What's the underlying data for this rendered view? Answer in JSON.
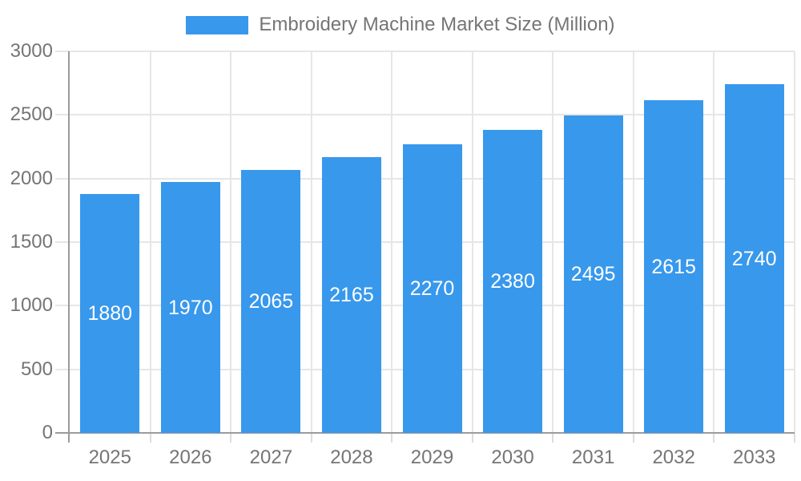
{
  "colors": {
    "background": "#FFFFFF",
    "bar": "#3898EC",
    "axis_line": "#9B9B9B",
    "grid_line": "#E6E6E6",
    "tick_line": "#DCDCDC",
    "tick_label_text": "#757575",
    "legend_text": "#757575",
    "bar_label_text": "#FFFFFF"
  },
  "legend": {
    "label": "Embroidery Machine Market Size (Million)"
  },
  "chart_data": {
    "type": "bar",
    "title": "Embroidery Machine Market Size (Million)",
    "series_name": "Embroidery Machine Market Size (Million)",
    "categories": [
      "2025",
      "2026",
      "2027",
      "2028",
      "2029",
      "2030",
      "2031",
      "2032",
      "2033"
    ],
    "values": [
      1880,
      1970,
      2065,
      2165,
      2270,
      2380,
      2495,
      2615,
      2740
    ],
    "value_labels": [
      "1880",
      "1970",
      "2065",
      "2165",
      "2270",
      "2380",
      "2495",
      "2615",
      "2740"
    ],
    "xlabel": "",
    "ylabel": "",
    "ylim": [
      0,
      3000
    ],
    "yticks": [
      0,
      500,
      1000,
      1500,
      2000,
      2500,
      3000
    ],
    "grid": true,
    "legend_position": "top-center",
    "value_label_position": "inside-center"
  }
}
